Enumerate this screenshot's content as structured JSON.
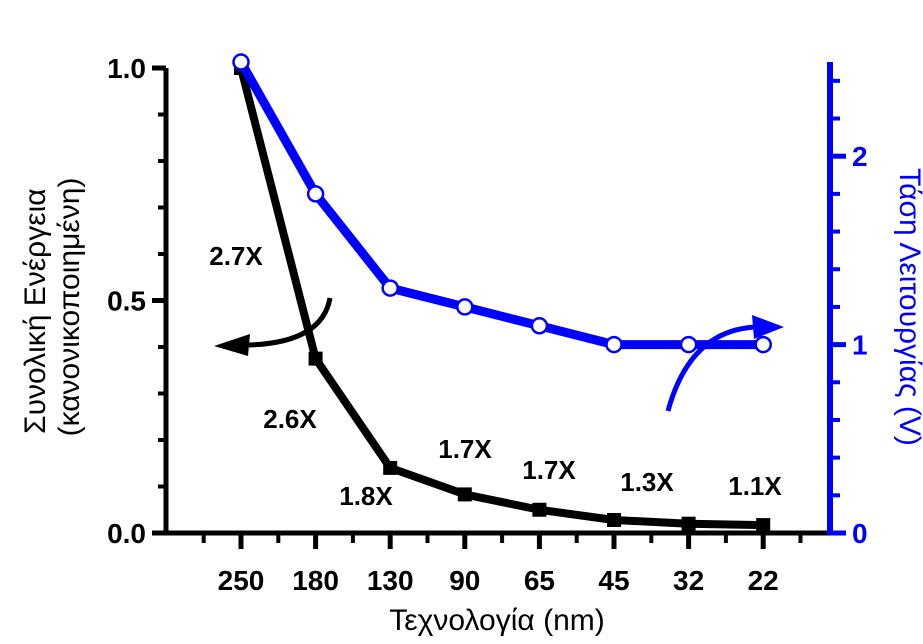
{
  "chart_data": {
    "type": "line",
    "categories": [
      "250",
      "180",
      "130",
      "90",
      "65",
      "45",
      "32",
      "22"
    ],
    "xlabel": "Τεχνολογία (nm)",
    "ylabel_left": [
      "Συνολική Ενέργεια",
      "(κανονικοποιημένη)"
    ],
    "ylabel_right": "Τάση Λειτουργίας (V)",
    "y_left": {
      "lim": [
        0,
        1.0
      ],
      "ticks": [
        0,
        0.5,
        1.0
      ],
      "tick_labels": [
        "0.0",
        "0.5",
        "1.0"
      ]
    },
    "y_right": {
      "lim": [
        0,
        2.5
      ],
      "ticks": [
        0,
        1,
        2
      ],
      "tick_labels": [
        "0",
        "1",
        "2"
      ]
    },
    "series": [
      {
        "axis": "left",
        "color": "#000000",
        "marker": "square",
        "values": [
          1.0,
          0.375,
          0.14,
          0.083,
          0.05,
          0.028,
          0.02,
          0.017
        ]
      },
      {
        "axis": "right",
        "color": "#0000ff",
        "marker": "hollow-circle",
        "values": [
          2.5,
          1.8,
          1.3,
          1.2,
          1.1,
          1.0,
          1.0,
          1.0
        ]
      }
    ],
    "annotations": [
      "2.7X",
      "2.6X",
      "1.8X",
      "1.7X",
      "1.7X",
      "1.3X",
      "1.1X"
    ],
    "arrows": [
      {
        "points_to": "left-axis",
        "color": "#000000"
      },
      {
        "points_to": "right-axis",
        "color": "#0000ff"
      }
    ],
    "grid": false,
    "legend": "none"
  }
}
